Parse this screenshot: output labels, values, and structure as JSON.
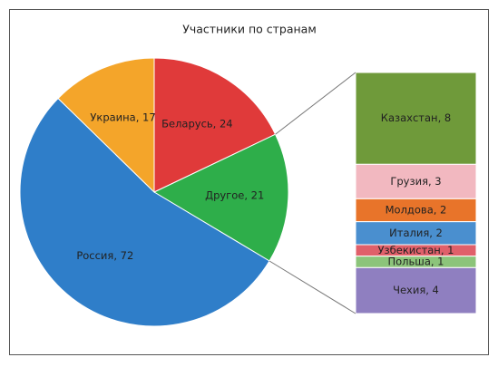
{
  "chart_data": {
    "type": "pie",
    "title": "Участники по странам",
    "categories": [
      "Беларусь",
      "Другое",
      "Россия",
      "Украина"
    ],
    "values": [
      24,
      21,
      72,
      17
    ],
    "value_labels": [
      "Беларусь, 24",
      "Другое, 21",
      "Россия, 72",
      "Украина, 17"
    ],
    "colors": [
      "#e03a3a",
      "#2eae4a",
      "#2f7ec9",
      "#f4a52a"
    ],
    "breakdown": {
      "of": "Другое",
      "categories": [
        "Казахстан",
        "Грузия",
        "Молдова",
        "Италия",
        "Узбекистан",
        "Польша",
        "Чехия"
      ],
      "values": [
        8,
        3,
        2,
        2,
        1,
        1,
        4
      ],
      "value_labels": [
        "Казахстан, 8",
        "Грузия, 3",
        "Молдова, 2",
        "Италия, 2",
        "Узбекистан, 1",
        "Польша, 1",
        "Чехия, 4"
      ],
      "colors": [
        "#6f9a3a",
        "#f2b8c0",
        "#e8742a",
        "#4a8fcf",
        "#e0606a",
        "#8cc47a",
        "#8f7fc0"
      ]
    }
  }
}
